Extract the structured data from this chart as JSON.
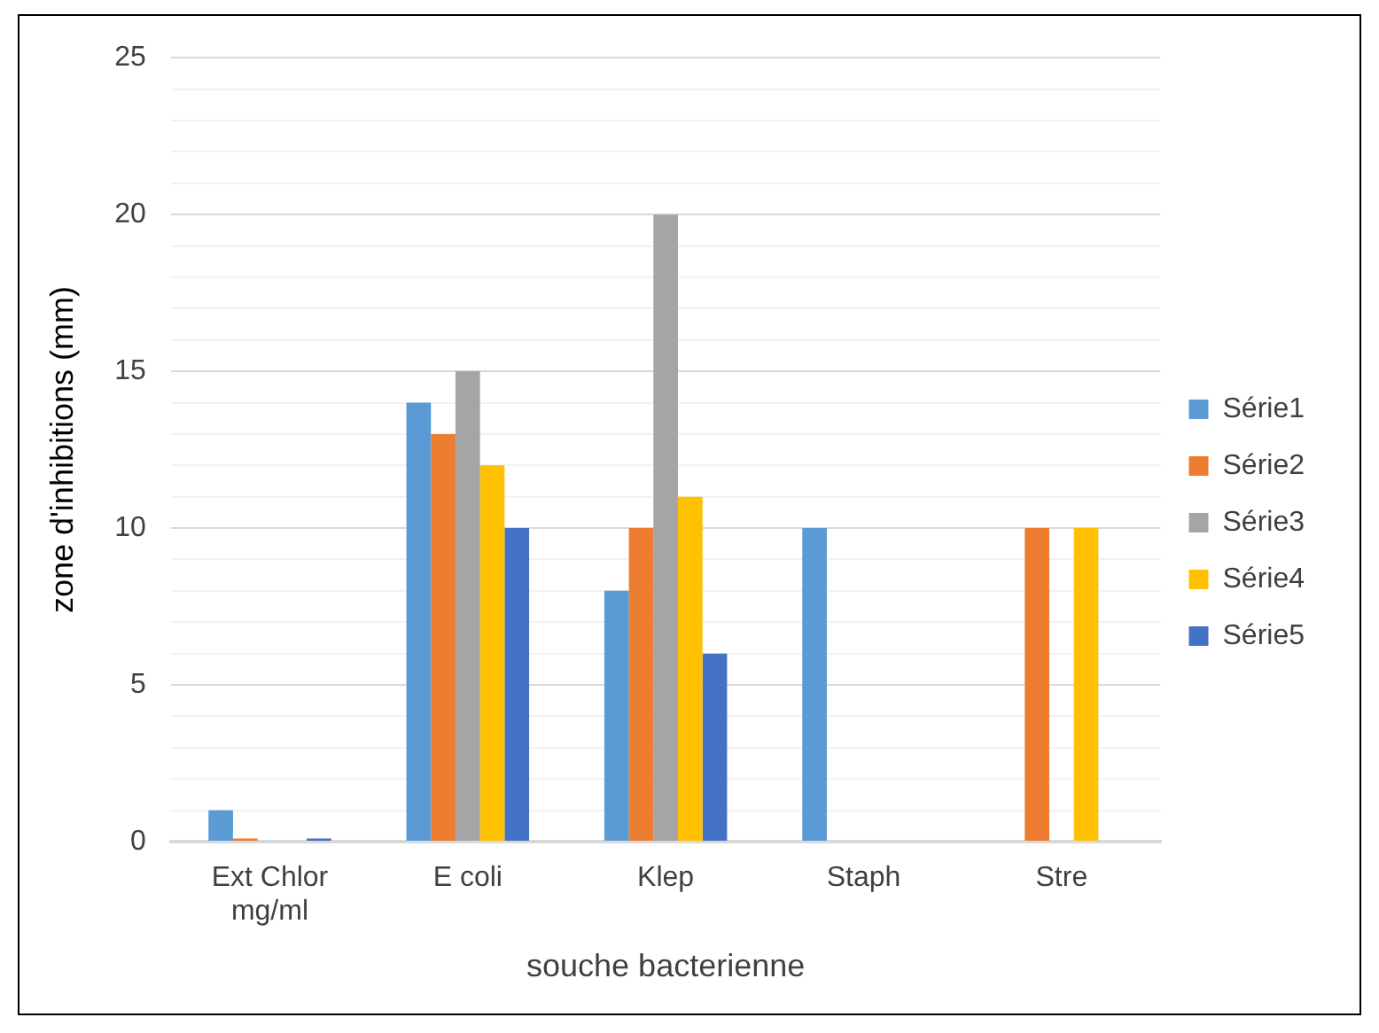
{
  "chart_data": {
    "type": "bar",
    "xlabel": "souche bacterienne",
    "ylabel": "zone d'inhibitions (mm)",
    "categories": [
      "Ext Chlor mg/ml",
      "E coli",
      "Klep",
      "Staph",
      "Stre"
    ],
    "series": [
      {
        "name": "Série1",
        "color": "#5b9bd5",
        "values": [
          1,
          14,
          8,
          10,
          0
        ]
      },
      {
        "name": "Série2",
        "color": "#ed7d31",
        "values": [
          0.1,
          13,
          10,
          0,
          10
        ]
      },
      {
        "name": "Série3",
        "color": "#a5a5a5",
        "values": [
          0,
          15,
          20,
          0,
          0
        ]
      },
      {
        "name": "Série4",
        "color": "#ffc000",
        "values": [
          0,
          12,
          11,
          0,
          10
        ]
      },
      {
        "name": "Série5",
        "color": "#4472c4",
        "values": [
          0.1,
          10,
          6,
          0,
          0
        ]
      }
    ],
    "ylim": [
      0,
      25
    ],
    "yticks": [
      0,
      {
        "value": 1,
        "label": null
      },
      {
        "value": 2,
        "label": null
      },
      {
        "value": 3,
        "label": null
      },
      {
        "value": 4,
        "label": null
      },
      5,
      {
        "value": 6,
        "label": null
      },
      {
        "value": 7,
        "label": null
      },
      {
        "value": 8,
        "label": null
      },
      {
        "value": 9,
        "label": null
      },
      10,
      {
        "value": 11,
        "label": null
      },
      {
        "value": 12,
        "label": null
      },
      {
        "value": 13,
        "label": null
      },
      {
        "value": 14,
        "label": null
      },
      15,
      {
        "value": 16,
        "label": null
      },
      {
        "value": 17,
        "label": null
      },
      {
        "value": 18,
        "label": null
      },
      {
        "value": 19,
        "label": null
      },
      20,
      {
        "value": 21,
        "label": null
      },
      {
        "value": 22,
        "label": null
      },
      {
        "value": 23,
        "label": null
      },
      {
        "value": 24,
        "label": null
      },
      25
    ],
    "grid": "y",
    "legend": "right"
  }
}
